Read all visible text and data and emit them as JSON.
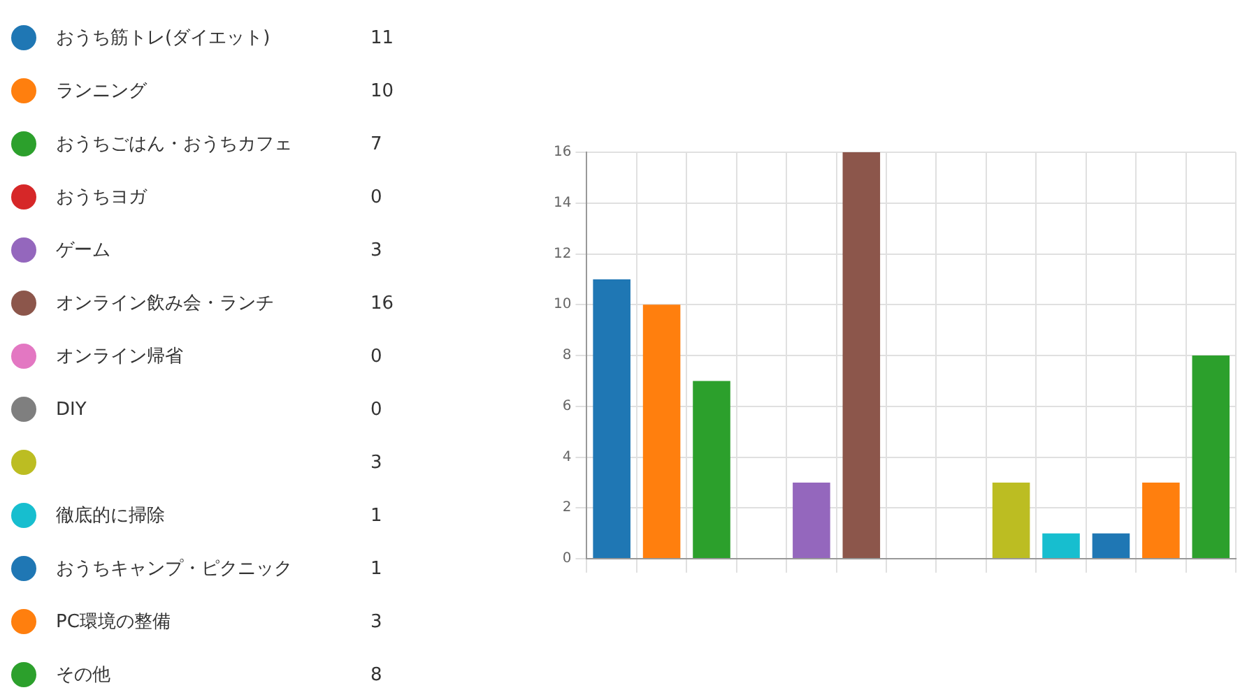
{
  "chart_data": [
    {
      "type": "other",
      "categories": [
        "おうち筋トレ(ダイエット)",
        "ランニング",
        "おうちごはん・おうちカフェ",
        "おうちヨガ",
        "ゲーム",
        "オンライン飲み会・ランチ",
        "オンライン帰省",
        "DIY",
        null,
        "徹底的に掃除",
        "おうちキャンプ・ピクニック",
        "PC環境の整備",
        "その他"
      ],
      "values": [
        11,
        10,
        7,
        0,
        3,
        16,
        0,
        0,
        3,
        1,
        1,
        3,
        8
      ],
      "colors": [
        "#1f77b4",
        "#ff7f0e",
        "#2ca02c",
        "#d62728",
        "#9467bd",
        "#8c564b",
        "#e377c2",
        "#7f7f7f",
        "#bcbd22",
        "#17becf",
        "#1f77b4",
        "#ff7f0e",
        "#2ca02c"
      ],
      "data_labels": true
    },
    {
      "type": "bar",
      "categories": [
        null,
        null,
        null,
        null,
        null,
        null,
        null,
        null,
        null,
        null,
        null,
        null,
        null
      ],
      "values": [
        11,
        10,
        7,
        0,
        3,
        16,
        0,
        0,
        3,
        1,
        1,
        3,
        8
      ],
      "colors": [
        "#1f77b4",
        "#ff7f0e",
        "#2ca02c",
        "#d62728",
        "#9467bd",
        "#8c564b",
        "#e377c2",
        "#7f7f7f",
        "#bcbd22",
        "#17becf",
        "#1f77b4",
        "#ff7f0e",
        "#2ca02c"
      ],
      "ylim": [
        0,
        16
      ],
      "yticks": [
        0,
        2,
        4,
        6,
        8,
        10,
        12,
        14,
        16
      ],
      "grid": true,
      "tick_labels": "y"
    }
  ]
}
